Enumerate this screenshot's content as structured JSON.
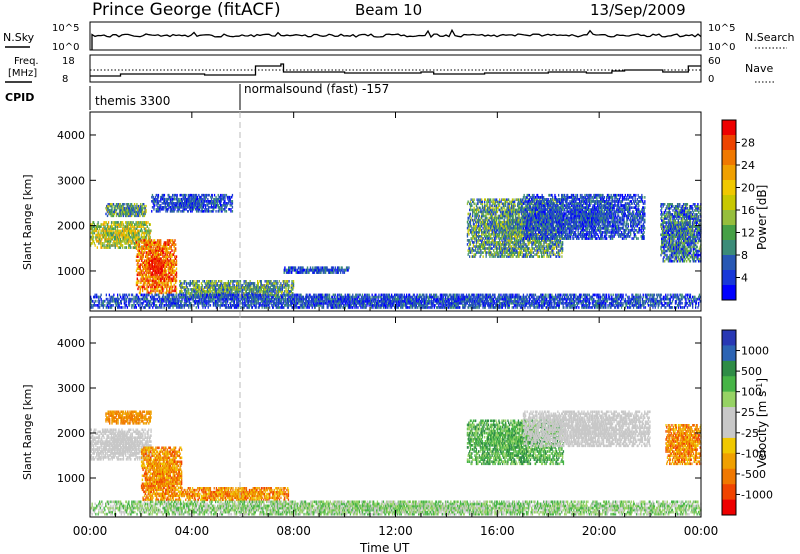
{
  "header": {
    "station": "Prince George (fitACF)",
    "beam": "Beam 10",
    "date": "13/Sep/2009"
  },
  "panels": {
    "nsky": {
      "left_label": "N.Sky",
      "right_label": "N.Search",
      "ticks": [
        "10^5",
        "10^0"
      ],
      "right_ticks": [
        "10^5",
        "10^0"
      ]
    },
    "freq": {
      "label_line1": "Freq.",
      "label_line2": "[MHz]",
      "ticks": [
        "18",
        "8"
      ],
      "right_label": "Nave",
      "right_ticks": [
        "60",
        "0"
      ]
    },
    "cpid": {
      "label": "CPID",
      "programs": [
        {
          "name": "themis 3300",
          "start_hour": 0
        },
        {
          "name": "normalsound (fast) -157",
          "start_hour": 6
        }
      ]
    }
  },
  "colorbars": {
    "power": {
      "title": "Power [dB]",
      "ticks": [
        "28",
        "24",
        "20",
        "16",
        "12",
        "8",
        "4"
      ],
      "colors": [
        "#ee0000",
        "#ee4400",
        "#f07800",
        "#f0a000",
        "#f0c800",
        "#c8c800",
        "#96be3c",
        "#46a046",
        "#3c8c78",
        "#2858b4",
        "#1838d8",
        "#0000ff"
      ]
    },
    "velocity": {
      "title": "Velocity",
      "units": "[m s",
      "units_exp": "-1",
      "units_end": "]",
      "ticks": [
        "1000",
        "500",
        "100",
        "25",
        "-25",
        "-100",
        "-500",
        "-1000"
      ],
      "colors": [
        "#2838b4",
        "#2c64b4",
        "#2e8c46",
        "#46b446",
        "#96d264",
        "#c8c8c8",
        "#c8c8c8",
        "#f0c800",
        "#f0a000",
        "#f07800",
        "#f04400",
        "#ee0000"
      ]
    }
  },
  "chart_data": [
    {
      "type": "heatmap",
      "variable": "Power",
      "ylabel": "Slant Range [km]",
      "xlabel": "Time UT",
      "xlim_hours": [
        0,
        24
      ],
      "ylim_km": [
        180,
        4600
      ],
      "yticks": [
        "4000",
        "3000",
        "2000",
        "1000"
      ],
      "xticks": [
        "00:00",
        "04:00",
        "08:00",
        "12:00",
        "16:00",
        "20:00",
        "00:00"
      ],
      "regions": [
        {
          "t0": 0.0,
          "t1": 2.4,
          "r0": 1500,
          "r1": 2100,
          "level": "medium-high"
        },
        {
          "t0": 0.6,
          "t1": 2.2,
          "r0": 2200,
          "r1": 2500,
          "level": "medium"
        },
        {
          "t0": 1.8,
          "t1": 3.4,
          "r0": 500,
          "r1": 1700,
          "level": "high"
        },
        {
          "t0": 2.4,
          "t1": 5.6,
          "r0": 2300,
          "r1": 2700,
          "level": "low"
        },
        {
          "t0": 3.5,
          "t1": 8.0,
          "r0": 400,
          "r1": 800,
          "level": "medium"
        },
        {
          "t0": 7.6,
          "t1": 10.2,
          "r0": 950,
          "r1": 1100,
          "level": "low"
        },
        {
          "t0": 0.0,
          "t1": 24.0,
          "r0": 180,
          "r1": 500,
          "level": "low"
        },
        {
          "t0": 14.8,
          "t1": 18.6,
          "r0": 1300,
          "r1": 2600,
          "level": "medium"
        },
        {
          "t0": 17.0,
          "t1": 21.8,
          "r0": 1700,
          "r1": 2700,
          "level": "low"
        },
        {
          "t0": 22.4,
          "t1": 24.0,
          "r0": 1200,
          "r1": 2500,
          "level": "low-medium"
        }
      ]
    },
    {
      "type": "heatmap",
      "variable": "Velocity",
      "ylabel": "Slant Range [km]",
      "xlabel": "Time UT",
      "xlim_hours": [
        0,
        24
      ],
      "ylim_km": [
        180,
        4600
      ],
      "yticks": [
        "4000",
        "3000",
        "2000",
        "1000"
      ],
      "xticks": [
        "00:00",
        "04:00",
        "08:00",
        "12:00",
        "16:00",
        "20:00",
        "00:00"
      ],
      "regions": [
        {
          "t0": 0.0,
          "t1": 2.4,
          "r0": 1400,
          "r1": 2100,
          "value": "-25..25"
        },
        {
          "t0": 0.6,
          "t1": 2.4,
          "r0": 2200,
          "r1": 2500,
          "value": "-100"
        },
        {
          "t0": 2.0,
          "t1": 3.6,
          "r0": 500,
          "r1": 1700,
          "value": "-500"
        },
        {
          "t0": 3.5,
          "t1": 7.8,
          "r0": 500,
          "r1": 800,
          "value": "-500"
        },
        {
          "t0": 0.0,
          "t1": 24.0,
          "r0": 180,
          "r1": 500,
          "value": "25..100"
        },
        {
          "t0": 14.8,
          "t1": 18.6,
          "r0": 1300,
          "r1": 2300,
          "value": "100"
        },
        {
          "t0": 17.0,
          "t1": 22.0,
          "r0": 1700,
          "r1": 2500,
          "value": "-25..25"
        },
        {
          "t0": 22.6,
          "t1": 24.0,
          "r0": 1300,
          "r1": 2200,
          "value": "-500"
        }
      ]
    }
  ]
}
